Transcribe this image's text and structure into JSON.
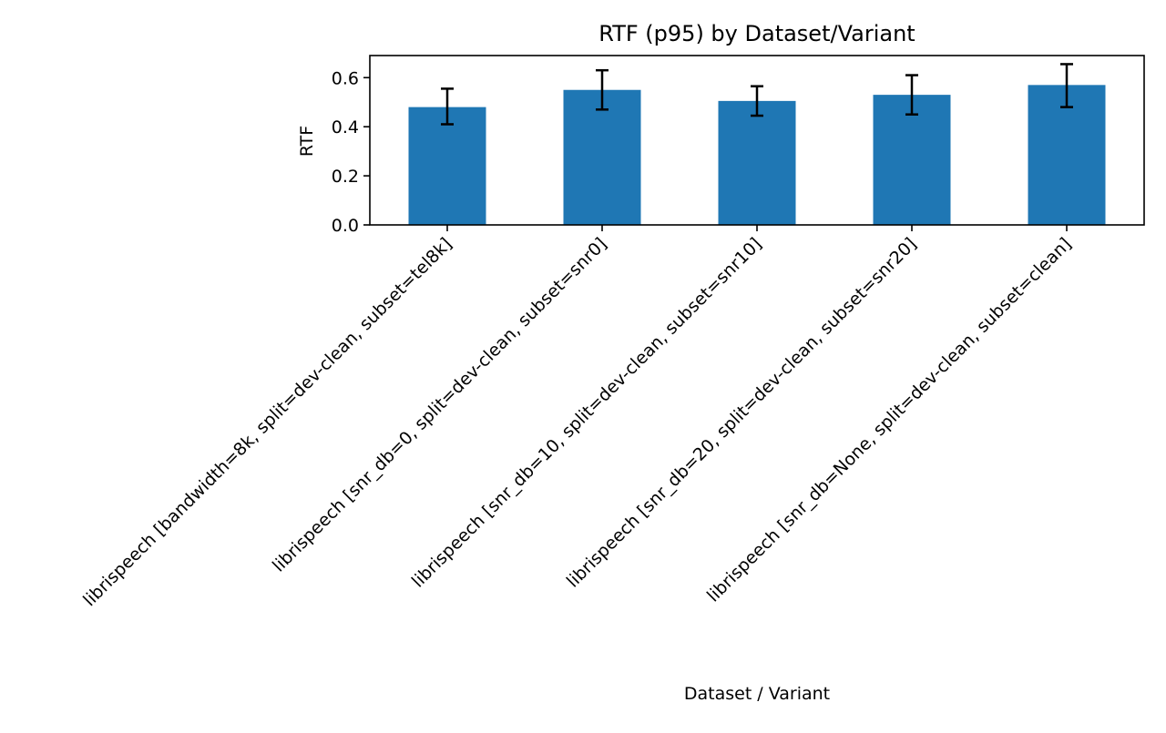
{
  "chart_data": {
    "type": "bar",
    "title": "RTF (p95) by Dataset/Variant",
    "xlabel": "Dataset / Variant",
    "ylabel": "RTF",
    "ylim": [
      0,
      0.69
    ],
    "yticks": [
      0.0,
      0.2,
      0.4,
      0.6
    ],
    "ytick_labels": [
      "0.0",
      "0.2",
      "0.4",
      "0.6"
    ],
    "grid": false,
    "legend": "none",
    "bar_color": "#1f77b4",
    "errorbar_color": "#000000",
    "categories": [
      "librispeech [bandwidth=8k, split=dev-clean, subset=tel8k]",
      "librispeech [snr_db=0, split=dev-clean, subset=snr0]",
      "librispeech [snr_db=10, split=dev-clean, subset=snr10]",
      "librispeech [snr_db=20, split=dev-clean, subset=snr20]",
      "librispeech [snr_db=None, split=dev-clean, subset=clean]"
    ],
    "values": [
      0.48,
      0.55,
      0.505,
      0.53,
      0.57
    ],
    "error_low": [
      0.41,
      0.47,
      0.445,
      0.45,
      0.48
    ],
    "error_high": [
      0.555,
      0.63,
      0.565,
      0.61,
      0.655
    ]
  }
}
